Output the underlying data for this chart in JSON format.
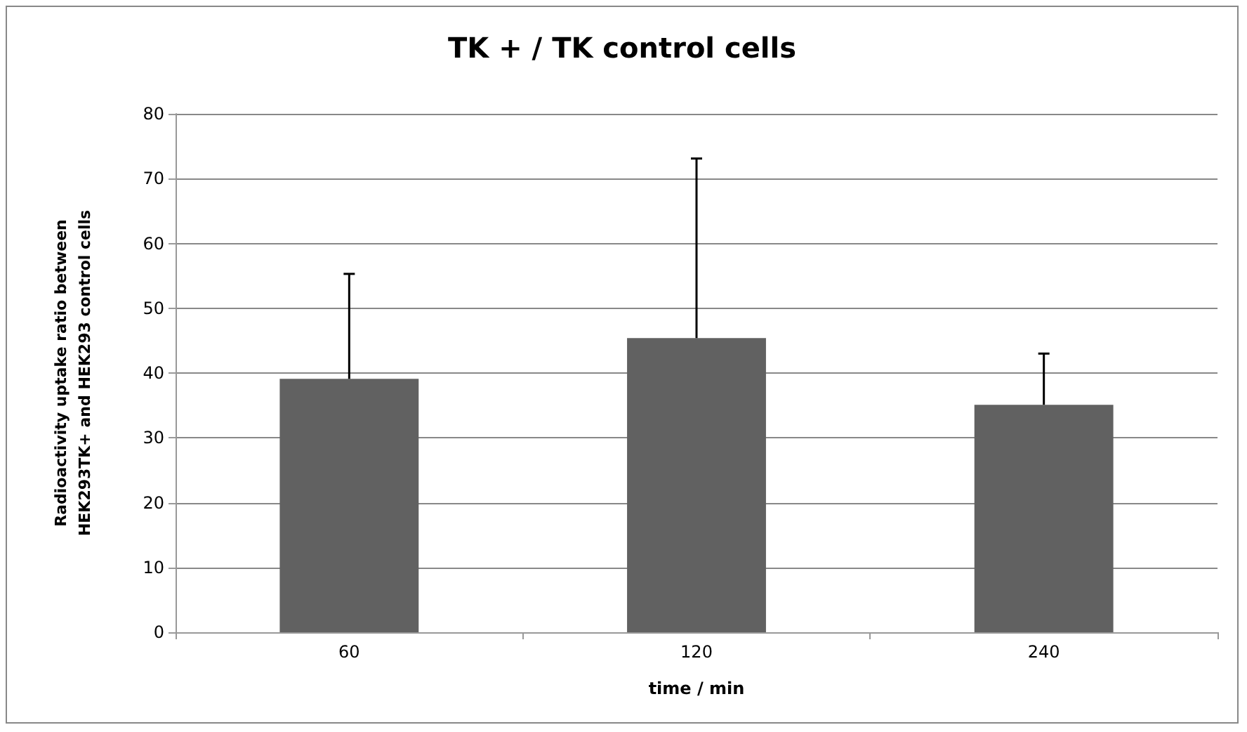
{
  "chart_data": {
    "type": "bar",
    "title": "TK + / TK control cells",
    "xlabel": "time / min",
    "ylabel": "Radioactivity uptake ratio between\nHEK293TK+ and HEK293 control cells",
    "categories": [
      "60",
      "120",
      "240"
    ],
    "series": [
      {
        "color": "#616161",
        "values": [
          39.1,
          45.4,
          35.1
        ],
        "errors": [
          [
            39.1,
            55.3
          ],
          [
            45.4,
            73.1
          ],
          [
            35.1,
            43.0
          ]
        ]
      }
    ],
    "ylim": [
      0,
      80
    ],
    "yticks": [
      0,
      10,
      20,
      30,
      40,
      50,
      60,
      70,
      80
    ],
    "grid": "y"
  }
}
